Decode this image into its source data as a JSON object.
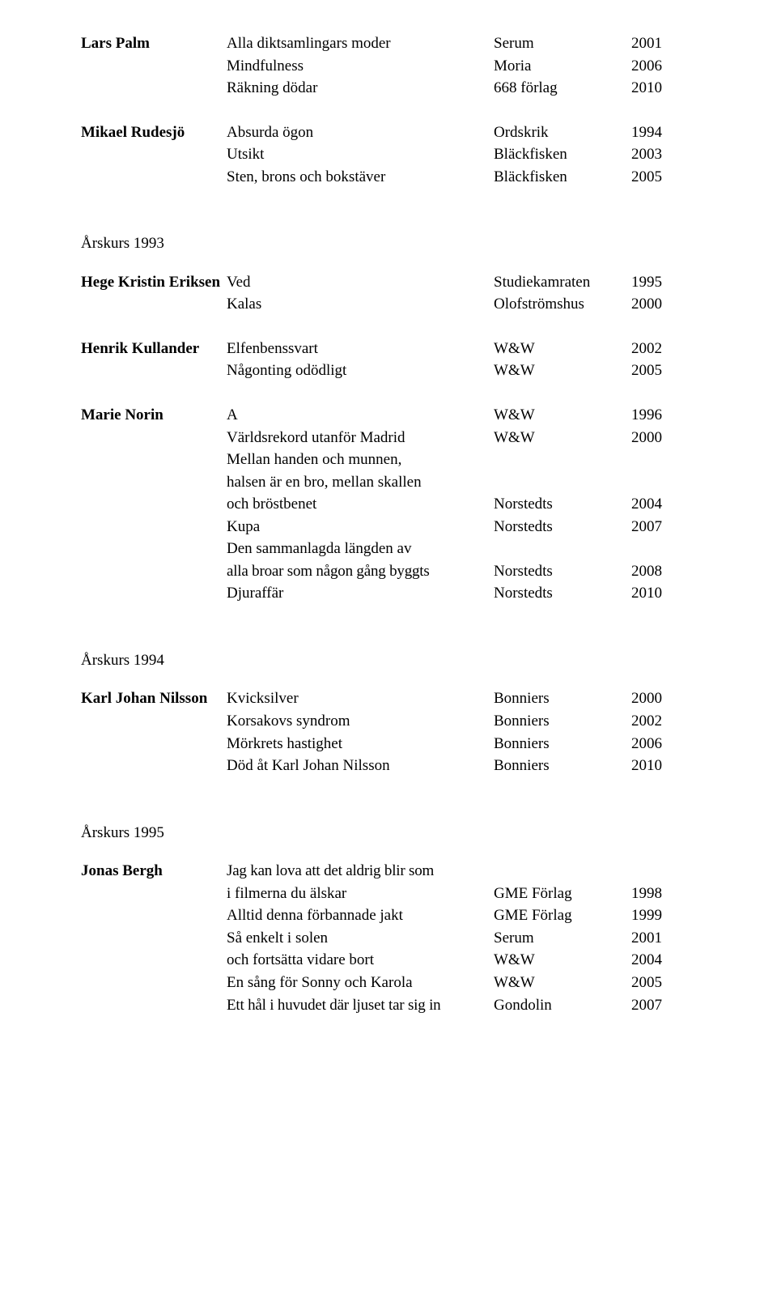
{
  "authors": [
    {
      "name": "Lars Palm",
      "entries": [
        {
          "title": "Alla diktsamlingars moder",
          "publisher": "Serum",
          "year": "2001"
        },
        {
          "title": "Mindfulness",
          "publisher": "Moria",
          "year": "2006"
        },
        {
          "title": "Räkning dödar",
          "publisher": "668 förlag",
          "year": "2010"
        }
      ]
    },
    {
      "name": "Mikael Rudesjö",
      "entries": [
        {
          "title": "Absurda ögon",
          "publisher": "Ordskrik",
          "year": "1994"
        },
        {
          "title": "Utsikt",
          "publisher": "Bläckfisken",
          "year": "2003"
        },
        {
          "title": "Sten, brons och bokstäver",
          "publisher": "Bläckfisken",
          "year": "2005"
        }
      ]
    }
  ],
  "sections": [
    {
      "heading": "Årskurs 1993",
      "authors": [
        {
          "name": "Hege Kristin Eriksen",
          "entries": [
            {
              "title": "Ved",
              "publisher": "Studiekamraten",
              "year": "1995"
            },
            {
              "title": "Kalas",
              "publisher": "Olofströmshus",
              "year": "2000"
            }
          ]
        },
        {
          "name": "Henrik Kullander",
          "entries": [
            {
              "title": "Elfenbenssvart",
              "publisher": "W&W",
              "year": "2002"
            },
            {
              "title": "Någonting odödligt",
              "publisher": "W&W",
              "year": "2005"
            }
          ]
        },
        {
          "name": "Marie Norin",
          "entries": [
            {
              "title": "A",
              "publisher": "W&W",
              "year": "1996"
            },
            {
              "title": "Världsrekord utanför Madrid",
              "publisher": "W&W",
              "year": "2000"
            },
            {
              "title": "Mellan handen och munnen,",
              "publisher": "",
              "year": ""
            },
            {
              "title": "halsen är en bro, mellan skallen",
              "publisher": "",
              "year": ""
            },
            {
              "title": "och bröstbenet",
              "publisher": "Norstedts",
              "year": "2004"
            },
            {
              "title": "Kupa",
              "publisher": "Norstedts",
              "year": "2007"
            },
            {
              "title": "Den sammanlagda längden av",
              "publisher": "",
              "year": ""
            },
            {
              "title": "alla broar som någon gång byggts",
              "publisher": "Norstedts",
              "year": "2008"
            },
            {
              "title": "Djuraffär",
              "publisher": "Norstedts",
              "year": "2010"
            }
          ]
        }
      ]
    },
    {
      "heading": "Årskurs 1994",
      "authors": [
        {
          "name": "Karl Johan Nilsson",
          "entries": [
            {
              "title": "Kvicksilver",
              "publisher": "Bonniers",
              "year": "2000"
            },
            {
              "title": "Korsakovs syndrom",
              "publisher": "Bonniers",
              "year": "2002"
            },
            {
              "title": "Mörkrets hastighet",
              "publisher": "Bonniers",
              "year": "2006"
            },
            {
              "title": "Död åt Karl Johan Nilsson",
              "publisher": "Bonniers",
              "year": "2010"
            }
          ]
        }
      ]
    },
    {
      "heading": "Årskurs 1995",
      "authors": [
        {
          "name": "Jonas Bergh",
          "entries": [
            {
              "title": "Jag kan lova att det aldrig blir som",
              "publisher": "",
              "year": ""
            },
            {
              "title": "i filmerna du älskar",
              "publisher": "GME Förlag",
              "year": "1998"
            },
            {
              "title": "Alltid denna förbannade jakt",
              "publisher": "GME Förlag",
              "year": "1999"
            },
            {
              "title": "Så enkelt i solen",
              "publisher": "Serum",
              "year": "2001"
            },
            {
              "title": "och fortsätta vidare bort",
              "publisher": "W&W",
              "year": "2004"
            },
            {
              "title": "En sång för Sonny och Karola",
              "publisher": "W&W",
              "year": "2005"
            },
            {
              "title": "Ett hål i huvudet där ljuset tar sig in",
              "publisher": "Gondolin",
              "year": "2007"
            }
          ]
        }
      ]
    }
  ]
}
